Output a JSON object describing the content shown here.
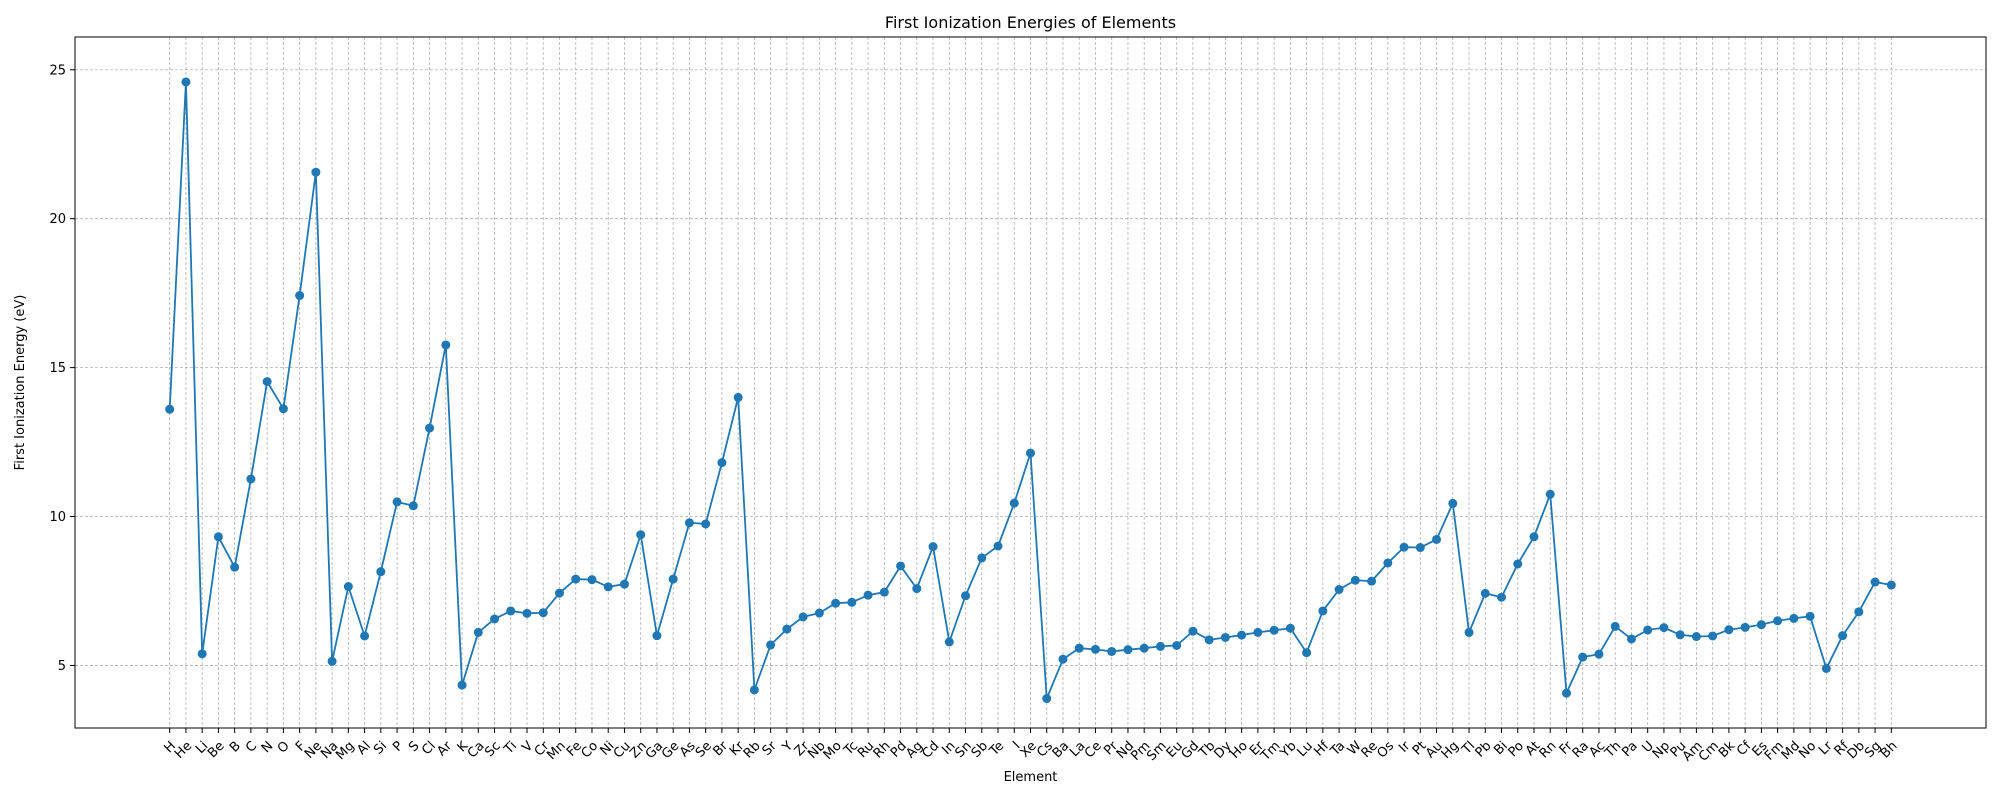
{
  "chart_data": {
    "type": "line",
    "title": "First Ionization Energies of Elements",
    "xlabel": "Element",
    "ylabel": "First Ionization Energy (eV)",
    "ylim": [
      2.9,
      26.1
    ],
    "yticks": [
      5,
      10,
      15,
      20,
      25
    ],
    "grid": true,
    "line_color": "#1f77b4",
    "categories": [
      "H",
      "He",
      "Li",
      "Be",
      "B",
      "C",
      "N",
      "O",
      "F",
      "Ne",
      "Na",
      "Mg",
      "Al",
      "Si",
      "P",
      "S",
      "Cl",
      "Ar",
      "K",
      "Ca",
      "Sc",
      "Ti",
      "V",
      "Cr",
      "Mn",
      "Fe",
      "Co",
      "Ni",
      "Cu",
      "Zn",
      "Ga",
      "Ge",
      "As",
      "Se",
      "Br",
      "Kr",
      "Rb",
      "Sr",
      "Y",
      "Zr",
      "Nb",
      "Mo",
      "Tc",
      "Ru",
      "Rh",
      "Pd",
      "Ag",
      "Cd",
      "In",
      "Sn",
      "Sb",
      "Te",
      "I",
      "Xe",
      "Cs",
      "Ba",
      "La",
      "Ce",
      "Pr",
      "Nd",
      "Pm",
      "Sm",
      "Eu",
      "Gd",
      "Tb",
      "Dy",
      "Ho",
      "Er",
      "Tm",
      "Yb",
      "Lu",
      "Hf",
      "Ta",
      "W",
      "Re",
      "Os",
      "Ir",
      "Pt",
      "Au",
      "Hg",
      "Tl",
      "Pb",
      "Bi",
      "Po",
      "At",
      "Rn",
      "Fr",
      "Ra",
      "Ac",
      "Th",
      "Pa",
      "U",
      "Np",
      "Pu",
      "Am",
      "Cm",
      "Bk",
      "Cf",
      "Es",
      "Fm",
      "Md",
      "No",
      "Lr",
      "Rf",
      "Db",
      "Sg",
      "Bh"
    ],
    "values": [
      13.6,
      24.59,
      5.39,
      9.32,
      8.3,
      11.26,
      14.53,
      13.62,
      17.42,
      21.56,
      5.14,
      7.65,
      5.99,
      8.15,
      10.49,
      10.36,
      12.97,
      15.76,
      4.34,
      6.11,
      6.56,
      6.83,
      6.75,
      6.77,
      7.43,
      7.9,
      7.88,
      7.64,
      7.73,
      9.39,
      6.0,
      7.9,
      9.79,
      9.75,
      11.81,
      14.0,
      4.18,
      5.69,
      6.22,
      6.63,
      6.76,
      7.09,
      7.12,
      7.36,
      7.46,
      8.34,
      7.58,
      8.99,
      5.79,
      7.34,
      8.61,
      9.01,
      10.45,
      12.13,
      3.89,
      5.21,
      5.58,
      5.54,
      5.47,
      5.53,
      5.58,
      5.64,
      5.67,
      6.15,
      5.86,
      5.94,
      6.02,
      6.11,
      6.18,
      6.25,
      5.43,
      6.83,
      7.55,
      7.86,
      7.83,
      8.44,
      8.97,
      8.96,
      9.23,
      10.44,
      6.11,
      7.42,
      7.29,
      8.41,
      9.32,
      10.75,
      4.07,
      5.28,
      5.38,
      6.31,
      5.89,
      6.19,
      6.27,
      6.03,
      5.97,
      5.99,
      6.2,
      6.28,
      6.37,
      6.5,
      6.58,
      6.65,
      4.9,
      6.0,
      6.8,
      7.8,
      7.7
    ]
  }
}
